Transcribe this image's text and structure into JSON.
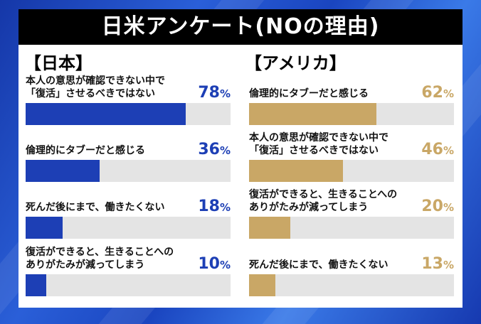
{
  "title": "日米アンケート(NOの理由)",
  "colors": {
    "japan": "#1d3fb5",
    "usa": "#c9a766",
    "track": "#e4e4e4"
  },
  "chart_data": [
    {
      "type": "bar",
      "title": "【日本】",
      "unit": "%",
      "xlim": [
        0,
        100
      ],
      "categories": [
        "本人の意思が確認できない中で\n「復活」させるべきではない",
        "倫理的にタブーだと感じる",
        "死んだ後にまで、働きたくない",
        "復活ができると、生きることへの\nありがたみが減ってしまう"
      ],
      "values": [
        78,
        36,
        18,
        10
      ]
    },
    {
      "type": "bar",
      "title": "【アメリカ】",
      "unit": "%",
      "xlim": [
        0,
        100
      ],
      "categories": [
        "倫理的にタブーだと感じる",
        "本人の意思が確認できない中で\n「復活」させるべきではない",
        "復活ができると、生きることへの\nありがたみが減ってしまう",
        "死んだ後にまで、働きたくない"
      ],
      "values": [
        62,
        46,
        20,
        13
      ]
    }
  ]
}
